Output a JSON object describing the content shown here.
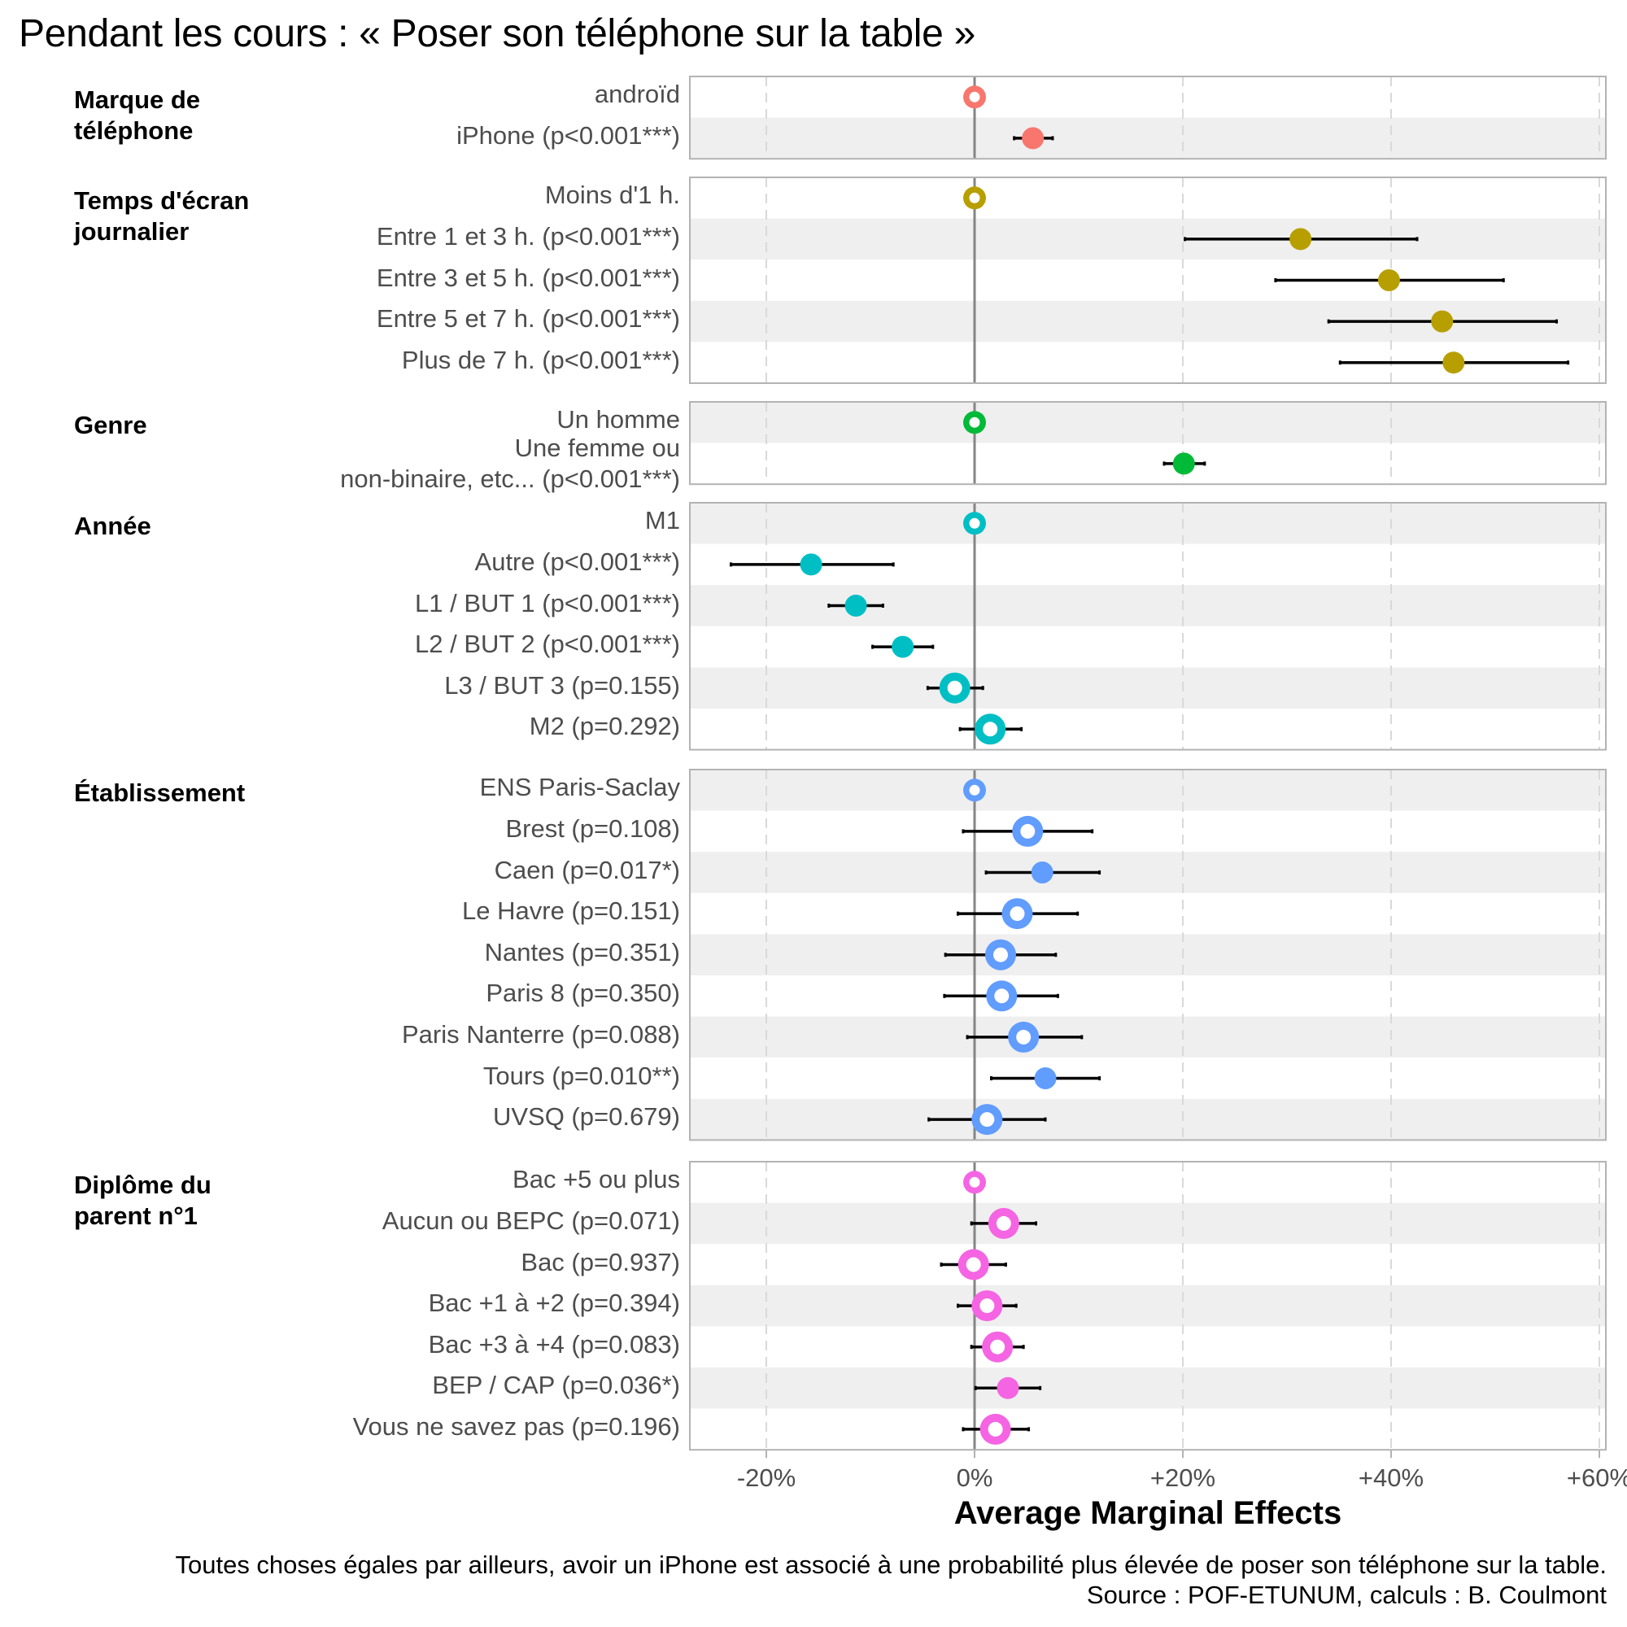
{
  "chart_data": {
    "type": "scatter",
    "subtype": "coefficient-plot-with-confidence-intervals",
    "title": "Pendant les cours : « Poser son téléphone sur la table »",
    "xlabel": "Average Marginal Effects",
    "ylabel": "",
    "xlim": [
      -27.3,
      60.6
    ],
    "x_unit": "%",
    "x_ticks": [
      -20,
      0,
      20,
      40,
      60
    ],
    "x_tick_labels": [
      "-20%",
      "0%",
      "+20%",
      "+40%",
      "+60%"
    ],
    "grid": "vertical dashed at ticks; alternating grey row bands",
    "reference_line": 0,
    "caption": "Toutes choses égales par ailleurs, avoir un iPhone est associé à une probabilité plus élevée de poser son téléphone sur la table.",
    "source": "Source : POF-ETUNUM, calculs : B. Coulmont",
    "groups": [
      {
        "name": "Marque de\ntéléphone",
        "color": "#F8766D",
        "rows": [
          {
            "label": "androïd",
            "value": 0,
            "low": null,
            "high": null,
            "reference": true,
            "significant": false
          },
          {
            "label": "iPhone (p<0.001***)",
            "value": 5.6,
            "low": 3.8,
            "high": 7.5,
            "reference": false,
            "significant": true
          }
        ]
      },
      {
        "name": "Temps d'écran\njournalier",
        "color": "#B79F00",
        "rows": [
          {
            "label": "Moins d'1 h.",
            "value": 0,
            "low": null,
            "high": null,
            "reference": true,
            "significant": false
          },
          {
            "label": "Entre 1 et 3 h. (p<0.001***)",
            "value": 31.3,
            "low": 20.2,
            "high": 42.5,
            "reference": false,
            "significant": true
          },
          {
            "label": "Entre 3 et 5 h. (p<0.001***)",
            "value": 39.8,
            "low": 28.9,
            "high": 50.8,
            "reference": false,
            "significant": true
          },
          {
            "label": "Entre 5 et 7 h. (p<0.001***)",
            "value": 44.9,
            "low": 34.0,
            "high": 55.9,
            "reference": false,
            "significant": true
          },
          {
            "label": "Plus de 7 h. (p<0.001***)",
            "value": 46.0,
            "low": 35.1,
            "high": 57.0,
            "reference": false,
            "significant": true
          }
        ]
      },
      {
        "name": "Genre",
        "color": "#00BA38",
        "rows": [
          {
            "label": "Un homme",
            "value": 0,
            "low": null,
            "high": null,
            "reference": true,
            "significant": false
          },
          {
            "label": "Une femme ou \nnon-binaire, etc... (p<0.001***)",
            "value": 20.1,
            "low": 18.2,
            "high": 22.1,
            "reference": false,
            "significant": true
          }
        ]
      },
      {
        "name": "Année",
        "color": "#00BFC4",
        "rows": [
          {
            "label": "M1",
            "value": 0,
            "low": null,
            "high": null,
            "reference": true,
            "significant": false
          },
          {
            "label": "Autre (p<0.001***)",
            "value": -15.7,
            "low": -23.4,
            "high": -7.8,
            "reference": false,
            "significant": true
          },
          {
            "label": "L1 / BUT 1 (p<0.001***)",
            "value": -11.4,
            "low": -14.0,
            "high": -8.8,
            "reference": false,
            "significant": true
          },
          {
            "label": "L2 / BUT 2 (p<0.001***)",
            "value": -6.9,
            "low": -9.8,
            "high": -4.0,
            "reference": false,
            "significant": true
          },
          {
            "label": "L3 / BUT 3 (p=0.155)",
            "value": -1.9,
            "low": -4.5,
            "high": 0.8,
            "reference": false,
            "significant": false
          },
          {
            "label": "M2 (p=0.292)",
            "value": 1.5,
            "low": -1.4,
            "high": 4.5,
            "reference": false,
            "significant": false
          }
        ]
      },
      {
        "name": "Établissement",
        "color": "#619CFF",
        "rows": [
          {
            "label": "ENS Paris-Saclay",
            "value": 0,
            "low": null,
            "high": null,
            "reference": true,
            "significant": false
          },
          {
            "label": "Brest (p=0.108)",
            "value": 5.1,
            "low": -1.1,
            "high": 11.3,
            "reference": false,
            "significant": false
          },
          {
            "label": "Caen (p=0.017*)",
            "value": 6.5,
            "low": 1.1,
            "high": 12.0,
            "reference": false,
            "significant": true
          },
          {
            "label": "Le Havre (p=0.151)",
            "value": 4.1,
            "low": -1.6,
            "high": 9.9,
            "reference": false,
            "significant": false
          },
          {
            "label": "Nantes (p=0.351)",
            "value": 2.5,
            "low": -2.8,
            "high": 7.8,
            "reference": false,
            "significant": false
          },
          {
            "label": "Paris 8 (p=0.350)",
            "value": 2.6,
            "low": -2.9,
            "high": 8.0,
            "reference": false,
            "significant": false
          },
          {
            "label": "Paris Nanterre (p=0.088)",
            "value": 4.7,
            "low": -0.7,
            "high": 10.3,
            "reference": false,
            "significant": false
          },
          {
            "label": "Tours (p=0.010**)",
            "value": 6.8,
            "low": 1.6,
            "high": 12.0,
            "reference": false,
            "significant": true
          },
          {
            "label": "UVSQ (p=0.679)",
            "value": 1.2,
            "low": -4.4,
            "high": 6.8,
            "reference": false,
            "significant": false
          }
        ]
      },
      {
        "name": "Diplôme du\nparent n°1",
        "color": "#F564E3",
        "rows": [
          {
            "label": "Bac +5 ou plus",
            "value": 0,
            "low": null,
            "high": null,
            "reference": true,
            "significant": false
          },
          {
            "label": "Aucun ou BEPC (p=0.071)",
            "value": 2.8,
            "low": -0.3,
            "high": 5.9,
            "reference": false,
            "significant": false
          },
          {
            "label": "Bac (p=0.937)",
            "value": -0.1,
            "low": -3.2,
            "high": 3.0,
            "reference": false,
            "significant": false
          },
          {
            "label": "Bac +1 à +2 (p=0.394)",
            "value": 1.2,
            "low": -1.6,
            "high": 4.0,
            "reference": false,
            "significant": false
          },
          {
            "label": "Bac +3 à +4 (p=0.083)",
            "value": 2.2,
            "low": -0.3,
            "high": 4.7,
            "reference": false,
            "significant": false
          },
          {
            "label": "BEP / CAP (p=0.036*)",
            "value": 3.2,
            "low": 0.1,
            "high": 6.3,
            "reference": false,
            "significant": true
          },
          {
            "label": "Vous ne savez pas (p=0.196)",
            "value": 2.0,
            "low": -1.1,
            "high": 5.2,
            "reference": false,
            "significant": false
          }
        ]
      }
    ]
  }
}
